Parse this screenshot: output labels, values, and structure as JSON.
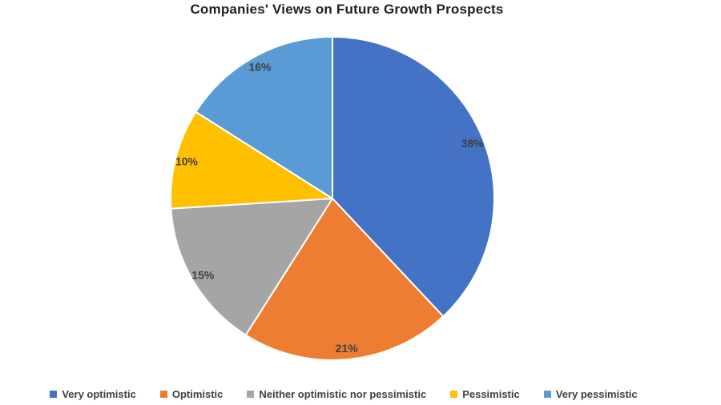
{
  "chart_data": {
    "type": "pie",
    "title": "Companies' Views on Future Growth Prospects",
    "categories": [
      "Very optimistic",
      "Optimistic",
      "Neither optimistic nor pessimistic",
      "Pessimistic",
      "Very pessimistic"
    ],
    "values": [
      38,
      21,
      15,
      10,
      16
    ],
    "data_labels": [
      "38%",
      "21%",
      "15%",
      "10%",
      "16%"
    ],
    "colors": [
      "#4472C4",
      "#ED7D31",
      "#A5A5A5",
      "#FFC000",
      "#5B9BD5"
    ],
    "unit": "%",
    "start_angle_deg": 0,
    "direction": "clockwise",
    "legend_position": "bottom",
    "background": "#FFFFFF",
    "slice_border_color": "#FFFFFF",
    "label_color": "#404040"
  }
}
